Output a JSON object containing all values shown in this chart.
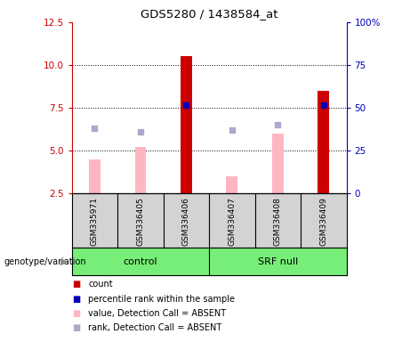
{
  "title": "GDS5280 / 1438584_at",
  "samples": [
    "GSM335971",
    "GSM336405",
    "GSM336406",
    "GSM336407",
    "GSM336408",
    "GSM336409"
  ],
  "groups": [
    "control",
    "control",
    "control",
    "SRF null",
    "SRF null",
    "SRF null"
  ],
  "group_labels": [
    "control",
    "SRF null"
  ],
  "count_values": [
    null,
    null,
    10.5,
    null,
    null,
    8.5
  ],
  "percentile_values": [
    null,
    null,
    7.65,
    null,
    null,
    7.65
  ],
  "absent_value_bars": [
    4.5,
    5.2,
    null,
    3.5,
    6.0,
    null
  ],
  "absent_rank_markers": [
    6.3,
    6.1,
    null,
    6.2,
    6.5,
    null
  ],
  "ylim_left": [
    2.5,
    12.5
  ],
  "ylim_right": [
    0,
    100
  ],
  "yticks_left": [
    2.5,
    5.0,
    7.5,
    10.0,
    12.5
  ],
  "yticks_right": [
    0,
    25,
    50,
    75,
    100
  ],
  "ytick_dotted": [
    5.0,
    7.5,
    10.0
  ],
  "count_color": "#CC0000",
  "percentile_color": "#0000BB",
  "absent_value_color": "#FFB6C1",
  "absent_rank_color": "#AAAACC",
  "legend_items": [
    {
      "label": "count",
      "color": "#CC0000"
    },
    {
      "label": "percentile rank within the sample",
      "color": "#0000BB"
    },
    {
      "label": "value, Detection Call = ABSENT",
      "color": "#FFB6C1"
    },
    {
      "label": "rank, Detection Call = ABSENT",
      "color": "#AAAACC"
    }
  ],
  "sample_cell_color": "#D3D3D3",
  "group_row_color": "#77EE77",
  "left_ylabel_color": "#CC0000",
  "right_ylabel_color": "#0000BB",
  "title_color": "#000000",
  "bar_width": 0.45
}
